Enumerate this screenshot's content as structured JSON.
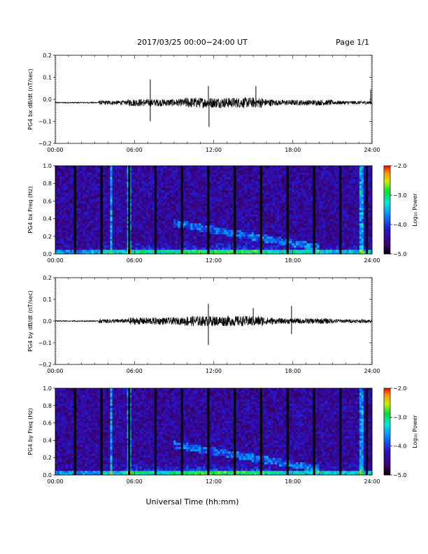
{
  "header": {
    "title": "2017/03/25  00:00−24:00 UT",
    "page": "Page 1/1"
  },
  "footer": {
    "xlabel": "Universal Time (hh:mm)"
  },
  "chart_data": [
    {
      "type": "line",
      "ylabel": "PG4 bx dB/dt (nT/sec)",
      "ylim": [
        -0.2,
        0.2
      ],
      "yticks": [
        "0.2",
        "0.1",
        "0.0",
        "−0.1",
        "−0.2"
      ],
      "ytick_values": [
        0.2,
        0.1,
        0.0,
        -0.1,
        -0.2
      ],
      "xlim": [
        0,
        24
      ],
      "xticks": [
        "00:00",
        "06:00",
        "12:00",
        "18:00",
        "24:00"
      ],
      "baseline": -0.015,
      "peaks": [
        {
          "t": 7.2,
          "v": 0.09
        },
        {
          "t": 7.2,
          "v": -0.1
        },
        {
          "t": 11.65,
          "v": -0.125
        },
        {
          "t": 11.6,
          "v": 0.06
        },
        {
          "t": 15.2,
          "v": 0.06
        },
        {
          "t": 23.9,
          "v": 0.045
        }
      ]
    },
    {
      "type": "heatmap",
      "ylabel": "PG4 bx Freq (Hz)",
      "ylim": [
        0.0,
        1.0
      ],
      "yticks": [
        "1.0",
        "0.8",
        "0.6",
        "0.4",
        "0.2",
        "0.0"
      ],
      "ytick_values": [
        1.0,
        0.8,
        0.6,
        0.4,
        0.2,
        0.0
      ],
      "xlim": [
        0,
        24
      ],
      "xticks": [
        "00:00",
        "06:00",
        "12:00",
        "18:00",
        "24:00"
      ],
      "colorbar": {
        "label": "Log₁₀ Power",
        "ticks": [
          "−2.0",
          "−3.0",
          "−4.0",
          "−5.0"
        ],
        "tick_values": [
          -2.0,
          -3.0,
          -4.0,
          -5.0
        ],
        "range": [
          -5.0,
          -2.0
        ]
      },
      "gap_times": [
        1.5,
        3.5,
        5.6,
        7.6,
        9.6,
        11.6,
        13.6,
        15.6,
        17.6,
        19.6,
        21.6,
        23.6
      ]
    },
    {
      "type": "line",
      "ylabel": "PG4 by dB/dt (nT/sec)",
      "ylim": [
        -0.2,
        0.2
      ],
      "yticks": [
        "0.2",
        "0.1",
        "0.0",
        "−0.1",
        "−0.2"
      ],
      "ytick_values": [
        0.2,
        0.1,
        0.0,
        -0.1,
        -0.2
      ],
      "xlim": [
        0,
        24
      ],
      "xticks": [
        "00:00",
        "06:00",
        "12:00",
        "18:00",
        "24:00"
      ],
      "baseline": 0.0,
      "peaks": [
        {
          "t": 11.6,
          "v": 0.08
        },
        {
          "t": 11.6,
          "v": -0.11
        },
        {
          "t": 15.0,
          "v": 0.06
        },
        {
          "t": 17.9,
          "v": 0.07
        },
        {
          "t": 17.9,
          "v": -0.06
        }
      ]
    },
    {
      "type": "heatmap",
      "ylabel": "PG4 by Freq (Hz)",
      "ylim": [
        0.0,
        1.0
      ],
      "yticks": [
        "1.0",
        "0.8",
        "0.6",
        "0.4",
        "0.2",
        "0.0"
      ],
      "ytick_values": [
        1.0,
        0.8,
        0.6,
        0.4,
        0.2,
        0.0
      ],
      "xlim": [
        0,
        24
      ],
      "xticks": [
        "00:00",
        "06:00",
        "12:00",
        "18:00",
        "24:00"
      ],
      "colorbar": {
        "label": "Log₁₀ Power",
        "ticks": [
          "−2.0",
          "−3.0",
          "−4.0",
          "−5.0"
        ],
        "tick_values": [
          -2.0,
          -3.0,
          -4.0,
          -5.0
        ],
        "range": [
          -5.0,
          -2.0
        ]
      },
      "gap_times": [
        1.5,
        3.5,
        5.6,
        7.6,
        9.6,
        11.6,
        13.6,
        15.6,
        17.6,
        19.6,
        21.6,
        23.6
      ]
    }
  ]
}
